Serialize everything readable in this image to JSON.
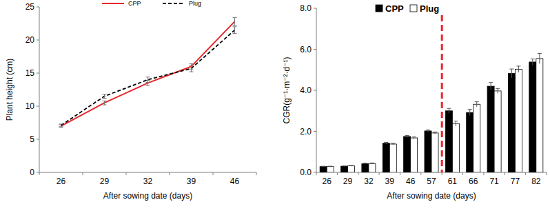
{
  "chart_data": [
    {
      "type": "line",
      "x_label": "After sowing date (days)",
      "y_label": "Plant height (cm)",
      "categories": [
        "26",
        "29",
        "32",
        "39",
        "46"
      ],
      "ylim": [
        0,
        25
      ],
      "yticks": [
        0,
        5,
        10,
        15,
        20,
        25
      ],
      "legend": "top",
      "series": [
        {
          "name": "CPP",
          "color": "#e8262b",
          "line_style": "solid",
          "values": [
            7.0,
            10.5,
            13.5,
            16.0,
            22.8
          ],
          "errors": [
            0.2,
            0.3,
            0.4,
            0.4,
            0.6
          ]
        },
        {
          "name": "Plug",
          "color": "#000000",
          "line_style": "dashed",
          "values": [
            7.1,
            11.5,
            14.0,
            15.7,
            21.5
          ],
          "errors": [
            0.2,
            0.3,
            0.4,
            0.5,
            0.5
          ]
        }
      ]
    },
    {
      "type": "bar",
      "x_label": "After sowing date (days)",
      "y_label": "CGR(g⁻¹·m⁻²·d⁻¹)",
      "categories": [
        "26",
        "29",
        "32",
        "39",
        "46",
        "57",
        "61",
        "66",
        "71",
        "77",
        "82"
      ],
      "ylim": [
        0,
        8
      ],
      "yticks": [
        {
          "value": 0,
          "label": "0.0"
        },
        {
          "value": 2,
          "label": "2.0"
        },
        {
          "value": 4,
          "label": "4.0"
        },
        {
          "value": 6,
          "label": "6.0"
        },
        {
          "value": 8,
          "label": "8.0"
        }
      ],
      "legend": "top",
      "series": [
        {
          "name": "CPP",
          "color": "#000000",
          "values": [
            0.28,
            0.3,
            0.42,
            1.42,
            1.75,
            2.02,
            3.0,
            2.92,
            4.2,
            4.82,
            5.38
          ],
          "errors": [
            0.02,
            0.02,
            0.03,
            0.04,
            0.05,
            0.05,
            0.12,
            0.15,
            0.18,
            0.22,
            0.15
          ]
        },
        {
          "name": "Plug",
          "color": "#ffffff",
          "values": [
            0.28,
            0.32,
            0.43,
            1.38,
            1.68,
            1.92,
            2.38,
            3.32,
            3.97,
            5.03,
            5.55
          ],
          "errors": [
            0.02,
            0.02,
            0.03,
            0.04,
            0.05,
            0.05,
            0.12,
            0.12,
            0.12,
            0.15,
            0.25
          ]
        }
      ]
    }
  ]
}
